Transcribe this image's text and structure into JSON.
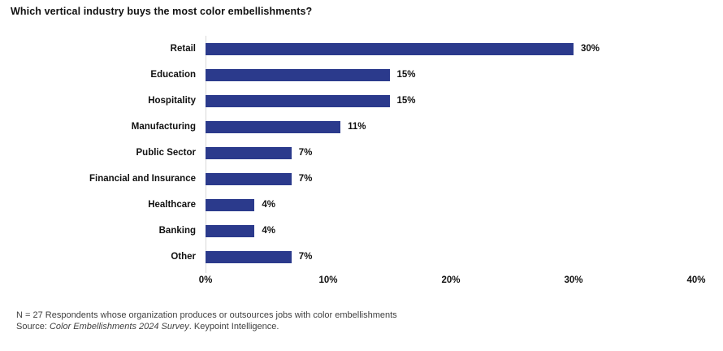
{
  "chart_data": {
    "type": "bar",
    "orientation": "horizontal",
    "title": "Which vertical industry buys the most color embellishments?",
    "categories": [
      "Retail",
      "Education",
      "Hospitality",
      "Manufacturing",
      "Public Sector",
      "Financial and Insurance",
      "Healthcare",
      "Banking",
      "Other"
    ],
    "values": [
      30,
      15,
      15,
      11,
      7,
      7,
      4,
      4,
      7
    ],
    "value_labels": [
      "30%",
      "15%",
      "15%",
      "11%",
      "7%",
      "7%",
      "4%",
      "4%",
      "7%"
    ],
    "xlabel": "",
    "ylabel": "",
    "xlim": [
      0,
      40
    ],
    "x_tick_labels": [
      "0%",
      "10%",
      "20%",
      "30%",
      "40%"
    ],
    "x_tick_values": [
      0,
      10,
      20,
      30,
      40
    ],
    "grid": "off",
    "legend_position": "none",
    "bar_color": "#2b3a8c",
    "axis_line_color": "#d9d9d9"
  },
  "footer": {
    "note": "N = 27 Respondents whose organization produces or outsources jobs with color embellishments",
    "source_prefix": "Source: ",
    "source_italic": "Color Embellishments 2024 Survey",
    "source_suffix": ". Keypoint Intelligence."
  }
}
